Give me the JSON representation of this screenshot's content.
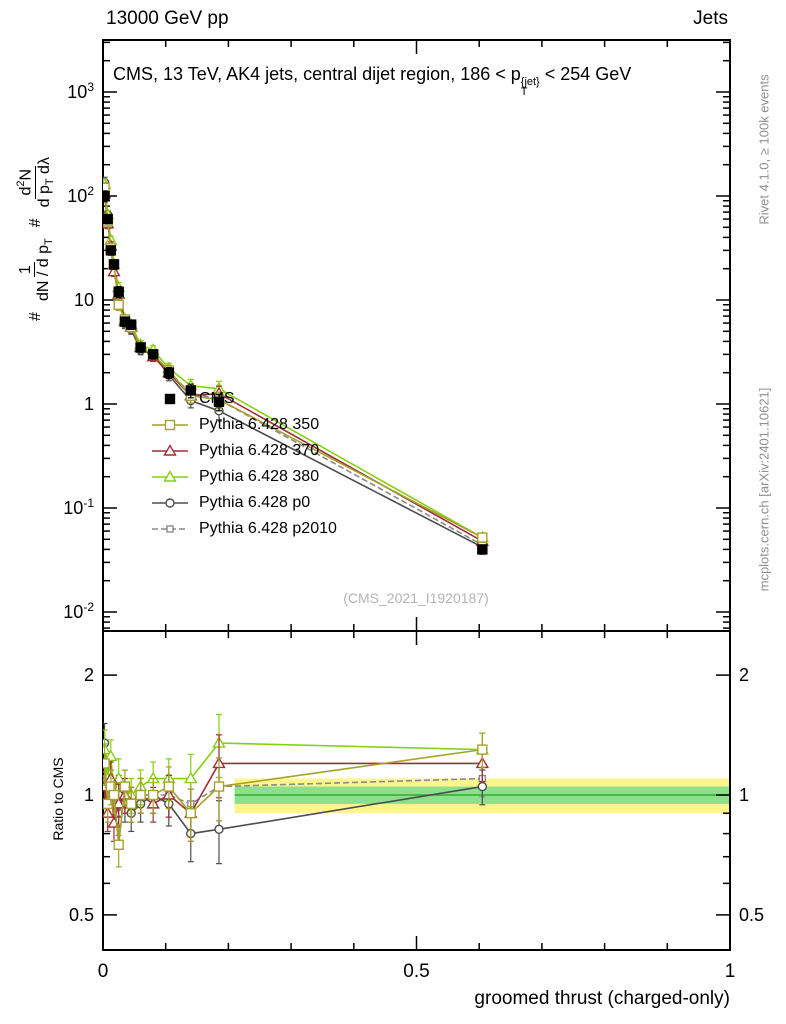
{
  "header": {
    "left": "13000 GeV pp",
    "right": "Jets"
  },
  "plot_title": {
    "pre": "CMS, 13 TeV, AK4 jets, central dijet region, 186 < p",
    "sup": "{jet}",
    "sub": "T",
    "post": "< 254 GeV"
  },
  "watermark": "(CMS_2021_I1920187)",
  "credits": {
    "rivet": "Rivet 4.1.0, ≥ 100k events",
    "mcplots": "mcplots.cern.ch [arXiv:2401.10621]"
  },
  "ylabel_main": {
    "hash1": "#",
    "frac1_num": "1",
    "frac1_den_pre": "dN / d p",
    "frac1_den_sub": "T",
    "hash2": "#",
    "frac2_num_pre": "d",
    "frac2_num_sup": "2",
    "frac2_num_post": "N",
    "frac2_den_pre": "d p",
    "frac2_den_sub": "T",
    "frac2_den_post": " dλ"
  },
  "ylabel_ratio": "Ratio to CMS",
  "xlabel": "groomed thrust (charged-only)",
  "chart_data": {
    "type": "line",
    "title": "CMS, 13 TeV, AK4 jets, central dijet region, 186 < p_T^{jet} < 254 GeV",
    "xlabel": "groomed thrust (charged-only)",
    "ylabel": "# 1/(dN/dp_T) # d^2N/(dp_T dlambda)",
    "ylabel_ratio": "Ratio to CMS",
    "xlim": [
      0,
      1
    ],
    "ylim_main": [
      0.0066,
      3162
    ],
    "ylim_ratio": [
      0.41,
      2.55
    ],
    "yscale": "log",
    "legend_position": "inside-left",
    "x": [
      0.0025,
      0.0075,
      0.0125,
      0.0175,
      0.025,
      0.035,
      0.045,
      0.06,
      0.08,
      0.105,
      0.14,
      0.185,
      0.605
    ],
    "ratio_err": [
      0.12,
      0.1,
      0.1,
      0.1,
      0.12,
      0.1,
      0.1,
      0.1,
      0.1,
      0.12,
      0.15,
      0.18,
      0.1
    ],
    "series": [
      {
        "name": "CMS",
        "color": "#000000",
        "marker": "square",
        "filled": true,
        "line": "none",
        "values": [
          100,
          60,
          30,
          22,
          12,
          6.2,
          5.8,
          3.5,
          3.0,
          2.0,
          1.35,
          1.05,
          0.04
        ]
      },
      {
        "name": "Pythia 6.428 350",
        "color": "#a6a12b",
        "marker": "square",
        "filled": false,
        "line": "solid",
        "values": [
          120,
          57,
          31.5,
          22,
          9,
          6.5,
          5.5,
          3.5,
          3.0,
          2.1,
          1.2,
          1.1,
          0.052
        ],
        "ratio": [
          1.2,
          0.95,
          1.05,
          1.0,
          0.75,
          1.05,
          0.95,
          1.0,
          1.0,
          1.05,
          0.9,
          1.05,
          1.3
        ]
      },
      {
        "name": "Pythia 6.428 370",
        "color": "#a12f36",
        "marker": "triangle",
        "filled": false,
        "line": "solid",
        "values": [
          105,
          54,
          33,
          18.7,
          11.4,
          6.2,
          5.5,
          3.5,
          2.85,
          2.0,
          1.2,
          1.26,
          0.048
        ],
        "ratio": [
          1.05,
          0.9,
          1.1,
          0.85,
          0.95,
          1.0,
          0.95,
          1.0,
          0.95,
          1.0,
          0.9,
          1.2,
          1.2
        ]
      },
      {
        "name": "Pythia 6.428 380",
        "color": "#85d010",
        "marker": "triangle",
        "filled": false,
        "line": "solid",
        "values": [
          130,
          66,
          37.5,
          22,
          13.2,
          6.5,
          5.8,
          3.7,
          3.3,
          2.2,
          1.5,
          1.4,
          0.052
        ],
        "ratio": [
          1.3,
          1.1,
          1.25,
          1.0,
          1.1,
          1.05,
          1.0,
          1.05,
          1.1,
          1.1,
          1.1,
          1.35,
          1.3
        ]
      },
      {
        "name": "Pythia 6.428 p0",
        "color": "#4d4d4d",
        "marker": "circle",
        "filled": false,
        "line": "solid",
        "values": [
          135,
          66,
          31.5,
          20.9,
          12,
          5.9,
          5.2,
          3.3,
          3.0,
          1.9,
          1.08,
          0.86,
          0.042
        ],
        "ratio": [
          1.35,
          1.1,
          1.05,
          0.95,
          1.0,
          0.95,
          0.9,
          0.95,
          1.0,
          0.95,
          0.8,
          0.82,
          1.05
        ]
      },
      {
        "name": "Pythia 6.428 p2010",
        "color": "#8a8a8a",
        "marker": "square",
        "small": true,
        "filled": false,
        "line": "dashed",
        "values": [
          110,
          60,
          31.5,
          20.9,
          10.8,
          6.2,
          5.5,
          3.5,
          3.0,
          2.0,
          1.28,
          1.1,
          0.044
        ],
        "ratio": [
          1.1,
          1.0,
          1.05,
          0.95,
          0.9,
          1.0,
          0.95,
          1.0,
          1.0,
          1.0,
          0.95,
          1.05,
          1.1
        ]
      }
    ],
    "bands": {
      "x0": 0.21,
      "x1": 1.0,
      "yellow": [
        0.9,
        1.1
      ],
      "green": [
        0.95,
        1.05
      ],
      "yellow_color": "#fcf48c",
      "green_color": "#8ce08c",
      "line_color": "#2fae2f"
    },
    "axes": {
      "x": {
        "ticks": [
          {
            "v": 0,
            "label": "0"
          },
          {
            "v": 0.5,
            "label": "0.5"
          },
          {
            "v": 1,
            "label": "1"
          }
        ],
        "minor_step": 0.1
      },
      "y_main": {
        "ticks": [
          {
            "v": 1000,
            "exp": "3"
          },
          {
            "v": 100,
            "exp": "2"
          },
          {
            "v": 10,
            "label": "10"
          },
          {
            "v": 1,
            "label": "1"
          },
          {
            "v": 0.1,
            "exp": "-1"
          },
          {
            "v": 0.01,
            "exp": "-2"
          }
        ]
      },
      "y_ratio": {
        "ticks": [
          {
            "v": 2,
            "label": "2"
          },
          {
            "v": 1,
            "label": "1"
          },
          {
            "v": 0.5,
            "label": "0.5"
          }
        ],
        "minor": [
          0.4,
          0.6,
          0.7,
          0.8,
          0.9
        ]
      }
    }
  }
}
